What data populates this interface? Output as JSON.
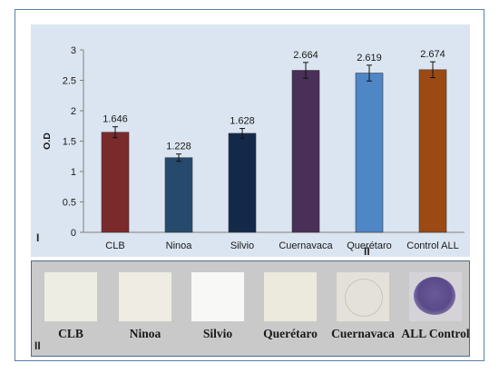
{
  "chart_data": {
    "type": "bar",
    "ylabel": "O.D",
    "ylim": [
      0,
      3
    ],
    "yticks": [
      "0",
      "0.5",
      "1",
      "1.5",
      "2",
      "2.5",
      "3"
    ],
    "categories": [
      "CLB",
      "Ninoa",
      "Silvio",
      "Cuernavaca",
      "Querétaro",
      "Control ALL"
    ],
    "values": [
      1.646,
      1.228,
      1.628,
      2.664,
      2.619,
      2.674
    ],
    "value_labels": [
      "1.646",
      "1.228",
      "1.628",
      "2.664",
      "2.619",
      "2.674"
    ],
    "error": [
      0.09,
      0.06,
      0.08,
      0.13,
      0.13,
      0.13
    ],
    "colors": [
      "#7b2a2c",
      "#264a6e",
      "#14294a",
      "#4a2f58",
      "#4f86c6",
      "#9b4a13"
    ],
    "panel_label": "I"
  },
  "photo_panel": {
    "panel_label": "II",
    "labels": [
      "CLB",
      "Ninoa",
      "Silvio",
      "Querétaro",
      "Cuernavaca",
      "ALL Control"
    ]
  },
  "stray_label": "II"
}
